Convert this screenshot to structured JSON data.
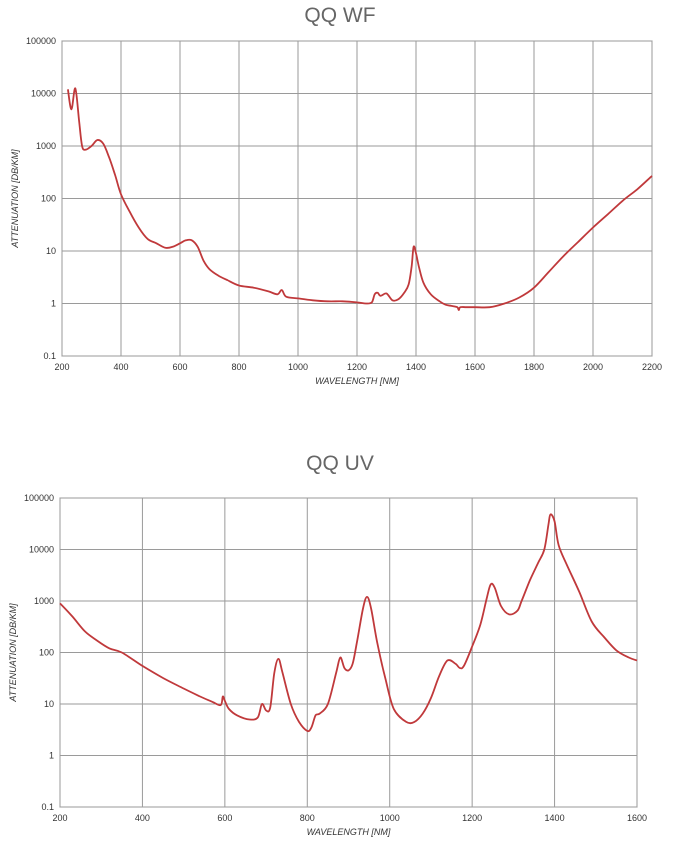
{
  "chart_data": [
    {
      "type": "line",
      "title": "QQ WF",
      "xlabel": "WAVELENGTH [NM]",
      "ylabel": "ATTENUATION [DB/KM]",
      "xlim": [
        200,
        2200
      ],
      "ylim": [
        0.1,
        100000
      ],
      "yscale": "log",
      "grid": true,
      "x_ticks": [
        "200",
        "400",
        "600",
        "800",
        "1000",
        "1200",
        "1400",
        "1600",
        "1800",
        "2000",
        "2200"
      ],
      "y_ticks": [
        "100000",
        "10000",
        "1000",
        "100",
        "10",
        "1",
        "0.1"
      ],
      "line_color": "#c0393b",
      "series": [
        {
          "x": [
            220,
            232,
            245,
            258,
            268,
            280,
            300,
            320,
            340,
            360,
            380,
            400,
            430,
            460,
            490,
            520,
            550,
            575,
            600,
            620,
            640,
            660,
            680,
            700,
            730,
            760,
            800,
            850,
            900,
            930,
            945,
            960,
            1000,
            1050,
            1100,
            1150,
            1200,
            1230,
            1250,
            1260,
            1270,
            1280,
            1300,
            1320,
            1340,
            1360,
            1375,
            1385,
            1392,
            1400,
            1410,
            1425,
            1450,
            1480,
            1500,
            1520,
            1540,
            1545,
            1550,
            1570,
            1600,
            1650,
            1700,
            1750,
            1800,
            1850,
            1900,
            1950,
            2000,
            2050,
            2100,
            2150,
            2200
          ],
          "y": [
            12000,
            5000,
            12500,
            3000,
            1000,
            850,
            1000,
            1300,
            1100,
            600,
            280,
            120,
            55,
            28,
            17,
            14,
            11.5,
            12,
            14,
            16,
            16,
            12,
            6.5,
            4.5,
            3.4,
            2.8,
            2.2,
            2.0,
            1.7,
            1.5,
            1.8,
            1.35,
            1.25,
            1.15,
            1.1,
            1.1,
            1.05,
            1.0,
            1.05,
            1.5,
            1.6,
            1.4,
            1.55,
            1.15,
            1.2,
            1.6,
            2.3,
            5,
            12,
            9,
            5,
            2.5,
            1.5,
            1.1,
            0.95,
            0.9,
            0.85,
            0.75,
            0.85,
            0.85,
            0.85,
            0.85,
            1.0,
            1.3,
            2.0,
            4.0,
            8,
            15,
            28,
            50,
            90,
            150,
            270
          ]
        }
      ]
    },
    {
      "type": "line",
      "title": "QQ UV",
      "xlabel": "WAVELENGTH [NM]",
      "ylabel": "ATTENUATION [DB/KM]",
      "xlim": [
        200,
        1600
      ],
      "ylim": [
        0.1,
        100000
      ],
      "yscale": "log",
      "grid": true,
      "x_ticks": [
        "200",
        "400",
        "600",
        "800",
        "1000",
        "1200",
        "1400",
        "1600"
      ],
      "y_ticks": [
        "100000",
        "10000",
        "1000",
        "100",
        "10",
        "1",
        "0.1"
      ],
      "line_color": "#c0393b",
      "series": [
        {
          "x": [
            200,
            230,
            260,
            290,
            320,
            350,
            400,
            450,
            500,
            540,
            570,
            590,
            595,
            600,
            610,
            630,
            660,
            680,
            690,
            700,
            710,
            720,
            730,
            740,
            760,
            780,
            800,
            810,
            820,
            830,
            850,
            870,
            880,
            890,
            900,
            910,
            920,
            935,
            945,
            955,
            970,
            990,
            1010,
            1040,
            1060,
            1080,
            1100,
            1120,
            1140,
            1160,
            1170,
            1180,
            1200,
            1220,
            1235,
            1245,
            1255,
            1270,
            1290,
            1310,
            1320,
            1340,
            1360,
            1375,
            1385,
            1390,
            1400,
            1410,
            1430,
            1460,
            1490,
            1520,
            1550,
            1580,
            1600
          ],
          "y": [
            900,
            500,
            260,
            170,
            120,
            100,
            55,
            32,
            20,
            14,
            11,
            9.5,
            14,
            11.5,
            8,
            6,
            5,
            5.5,
            10,
            7.5,
            8.5,
            40,
            75,
            40,
            10,
            4.5,
            3,
            3.5,
            6,
            6.5,
            10,
            40,
            80,
            50,
            45,
            60,
            150,
            700,
            1200,
            700,
            150,
            30,
            8,
            4.5,
            4.5,
            6.5,
            13,
            35,
            70,
            60,
            50,
            55,
            130,
            350,
            1100,
            2100,
            1800,
            800,
            550,
            650,
            1000,
            2500,
            5500,
            10000,
            30000,
            48000,
            35000,
            12000,
            5000,
            1500,
            400,
            200,
            110,
            80,
            70
          ]
        }
      ]
    }
  ]
}
